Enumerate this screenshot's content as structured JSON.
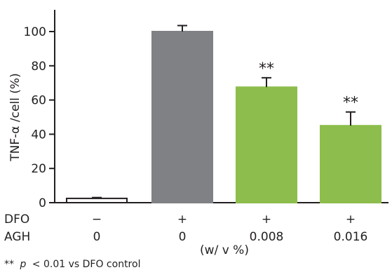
{
  "chart_data": {
    "type": "bar",
    "ylabel": "TNF-α /cell (%)",
    "ylim": [
      0,
      110
    ],
    "yticks": [
      0,
      20,
      40,
      60,
      80,
      100
    ],
    "grid": false,
    "bars": [
      {
        "value": 2.5,
        "error": 0.5,
        "color": "#ffffff",
        "stroke": "#231f20",
        "dfo": "−",
        "agh": "0",
        "sig": ""
      },
      {
        "value": 100,
        "error": 3.5,
        "color": "#808184",
        "stroke": "#808184",
        "dfo": "+",
        "agh": "0",
        "sig": ""
      },
      {
        "value": 67.5,
        "error": 5.5,
        "color": "#8dbd4c",
        "stroke": "#8dbd4c",
        "dfo": "+",
        "agh": "0.008",
        "sig": "**"
      },
      {
        "value": 45,
        "error": 8,
        "color": "#8dbd4c",
        "stroke": "#8dbd4c",
        "dfo": "+",
        "agh": "0.016",
        "sig": "**"
      }
    ],
    "row_labels": {
      "dfo": "DFO",
      "agh": "AGH"
    },
    "unit_label": "(w/ v %)",
    "footnote": {
      "marker": "**",
      "p": "p",
      "rest": "< 0.01 vs DFO control"
    }
  }
}
